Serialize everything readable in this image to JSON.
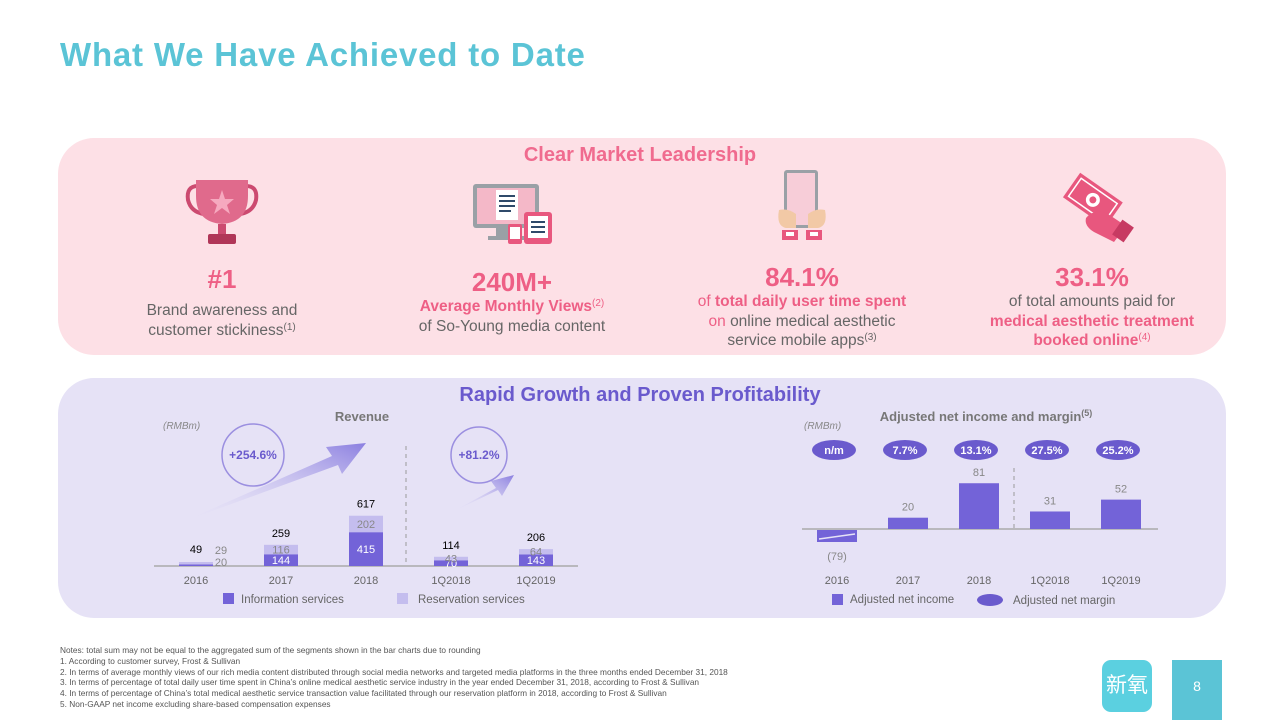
{
  "title": "What We Have Achieved to Date",
  "leadership": {
    "title": "Clear Market Leadership",
    "stats": [
      {
        "big": "#1",
        "line1": "Brand awareness and",
        "line2": "customer stickiness",
        "sup": "(1)"
      },
      {
        "big": "240M+",
        "line1": "Average Monthly Views",
        "sup": "(2)",
        "line2": "of So-Young media content"
      },
      {
        "big": "84.1%",
        "l1a": "of ",
        "l1b": "total daily user time spent",
        "l2a": "on ",
        "l2b": "online medical aesthetic",
        "line3": "service mobile apps",
        "sup": "(3)"
      },
      {
        "big": "33.1%",
        "line1": "of total amounts paid for",
        "line2": "medical aesthetic treatment",
        "line3": "booked online",
        "sup": "(4)"
      }
    ]
  },
  "growth": {
    "title": "Rapid Growth and Proven Profitability"
  },
  "colors": {
    "title": "#5bc4d6",
    "pink": "#ee5f85",
    "purple": "#6a5acd",
    "info": "#7363d8",
    "reservation": "#c4bdee"
  },
  "chart_data": [
    {
      "type": "bar",
      "title": "Revenue",
      "unit": "(RMBm)",
      "categories": [
        "2016",
        "2017",
        "2018",
        "1Q2018",
        "1Q2019"
      ],
      "series": [
        {
          "name": "Information services",
          "values": [
            20,
            144,
            415,
            70,
            143
          ]
        },
        {
          "name": "Reservation services",
          "values": [
            29,
            116,
            202,
            43,
            64
          ]
        }
      ],
      "totals": [
        49,
        259,
        617,
        114,
        206
      ],
      "growth_labels": [
        "+254.6%",
        "+81.2%"
      ]
    },
    {
      "type": "bar",
      "title": "Adjusted net income and margin",
      "title_sup": "(5)",
      "unit": "(RMBm)",
      "categories": [
        "2016",
        "2017",
        "2018",
        "1Q2018",
        "1Q2019"
      ],
      "series": [
        {
          "name": "Adjusted net income",
          "values": [
            -79,
            20,
            81,
            31,
            52
          ]
        }
      ],
      "value_labels": [
        "(79)",
        "20",
        "81",
        "31",
        "52"
      ],
      "margins": [
        "n/m",
        "7.7%",
        "13.1%",
        "27.5%",
        "25.2%"
      ],
      "legend_margin": "Adjusted net margin"
    }
  ],
  "notes": [
    "Notes: total sum may not be equal to the aggregated sum of the segments shown in the bar charts due to rounding",
    "1. According to customer survey, Frost & Sullivan",
    "2. In terms of average monthly views of our rich media content distributed through social media networks and targeted media platforms in the three months ended December 31, 2018",
    "3. In terms of percentage of total daily user time spent in China’s online medical aesthetic service industry in the year ended December 31, 2018, according to Frost & Sullivan",
    "4. In terms of percentage of China’s total medical aesthetic service transaction value facilitated through our reservation platform in 2018, according to Frost & Sullivan",
    "5. Non-GAAP net income excluding share-based compensation expenses"
  ],
  "logo_text": "新氧",
  "page_number": "8"
}
